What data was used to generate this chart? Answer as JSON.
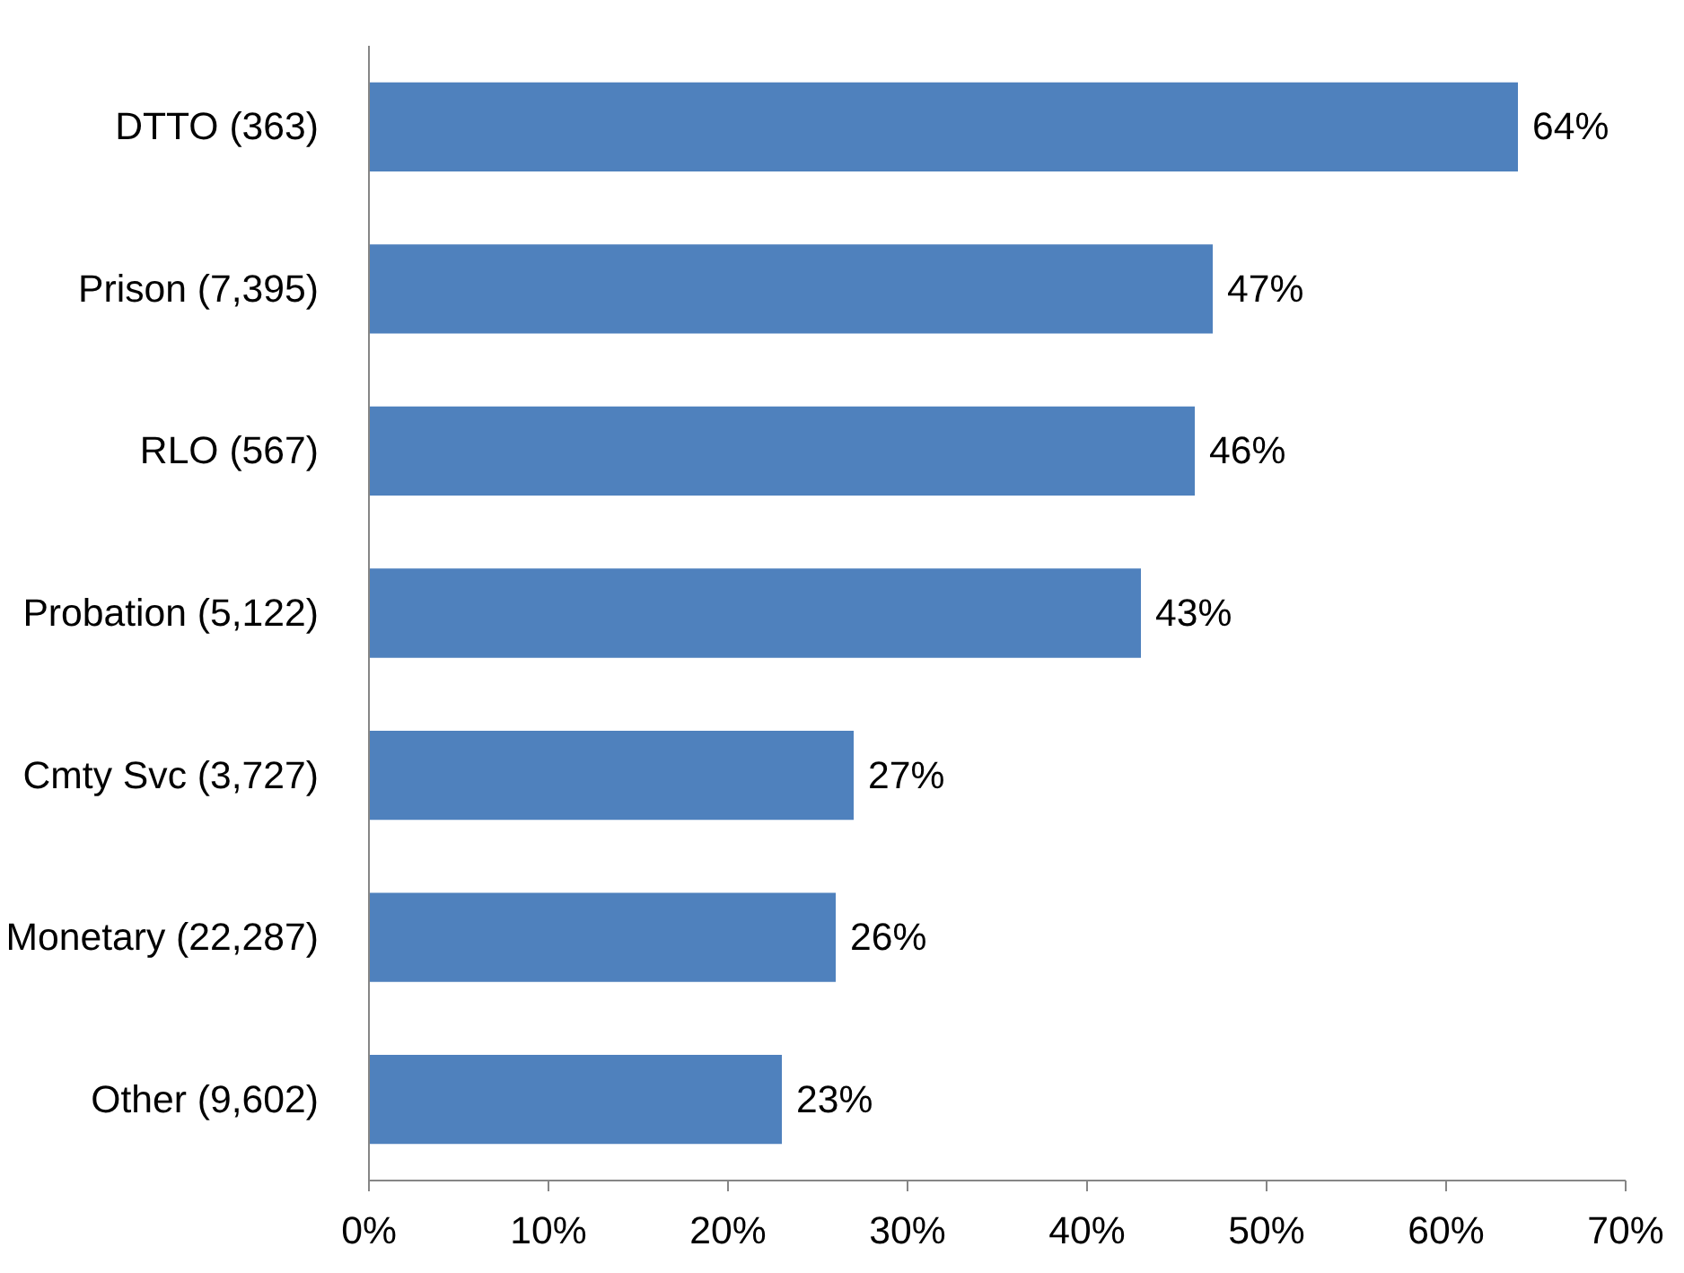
{
  "chart_data": {
    "type": "bar",
    "orientation": "horizontal",
    "categories": [
      "DTTO (363)",
      "Prison (7,395)",
      "RLO (567)",
      "Probation (5,122)",
      "Cmty Svc (3,727)",
      "Monetary (22,287)",
      "Other (9,602)"
    ],
    "values": [
      64,
      47,
      46,
      43,
      27,
      26,
      23
    ],
    "value_labels": [
      "64%",
      "47%",
      "46%",
      "43%",
      "27%",
      "26%",
      "23%"
    ],
    "color": "#4f81bd",
    "xlim": [
      0,
      70
    ],
    "xticks": [
      {
        "value": 0,
        "label": "0%"
      },
      {
        "value": 10,
        "label": "10%"
      },
      {
        "value": 20,
        "label": "20%"
      },
      {
        "value": 30,
        "label": "30%"
      },
      {
        "value": 40,
        "label": "40%"
      },
      {
        "value": 50,
        "label": "50%"
      },
      {
        "value": 60,
        "label": "60%"
      },
      {
        "value": 70,
        "label": "70%"
      }
    ],
    "grid": false
  }
}
